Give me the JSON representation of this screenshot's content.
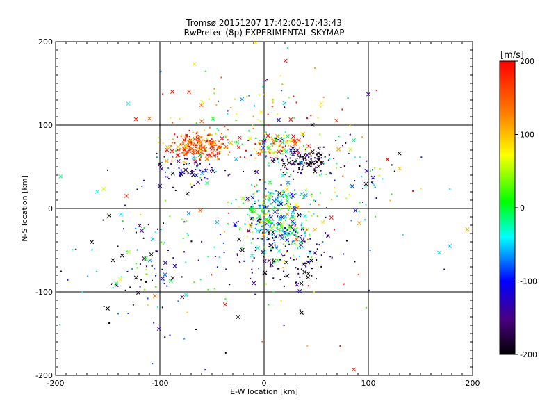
{
  "chart_data": {
    "type": "scatter",
    "title": "Tromsø 20151207 17:42:00-17:43:43",
    "subtitle": "RwPretec (8p) EXPERIMENTAL SKYMAP",
    "xlabel": "E-W location [km]",
    "ylabel": "N-S location [km]",
    "xlim": [
      -200,
      200
    ],
    "ylim": [
      -200,
      200
    ],
    "xticks": [
      "-200",
      "-100",
      "0",
      "100",
      "200"
    ],
    "yticks": [
      "-200",
      "-100",
      "0",
      "100",
      "200"
    ],
    "grid_lines": [
      -100,
      0,
      100
    ],
    "marker_types": [
      "dot",
      "x"
    ],
    "colorbar": {
      "label": "[m/s]",
      "range": [
        -200,
        200
      ],
      "ticks": [
        "200",
        "100",
        "0",
        "-100",
        "-200"
      ],
      "colormap": "rainbow (black-purple-blue-cyan-green-yellow-orange-red)"
    },
    "clusters": [
      {
        "center": [
          -62,
          76
        ],
        "spread": [
          16,
          9
        ],
        "count": 240,
        "velocity_mean": 150,
        "velocity_sd": 60
      },
      {
        "center": [
          -70,
          45
        ],
        "spread": [
          18,
          10
        ],
        "count": 70,
        "velocity_mean": -120,
        "velocity_sd": 50
      },
      {
        "center": [
          10,
          76
        ],
        "spread": [
          14,
          8
        ],
        "count": 130,
        "velocity_mean": 60,
        "velocity_sd": 90
      },
      {
        "center": [
          40,
          58
        ],
        "spread": [
          12,
          7
        ],
        "count": 120,
        "velocity_mean": -185,
        "velocity_sd": 25
      },
      {
        "center": [
          15,
          -12
        ],
        "spread": [
          18,
          22
        ],
        "count": 380,
        "velocity_mean": -20,
        "velocity_sd": 80
      },
      {
        "center": [
          20,
          -62
        ],
        "spread": [
          28,
          20
        ],
        "count": 110,
        "velocity_mean": -170,
        "velocity_sd": 40
      },
      {
        "center": [
          80,
          40
        ],
        "spread": [
          25,
          25
        ],
        "count": 70,
        "velocity_mean": -60,
        "velocity_sd": 120
      },
      {
        "center": [
          -110,
          -70
        ],
        "spread": [
          32,
          40
        ],
        "count": 120,
        "velocity_mean": -100,
        "velocity_sd": 110
      },
      {
        "center": [
          -10,
          120
        ],
        "spread": [
          40,
          25
        ],
        "count": 60,
        "velocity_mean": 80,
        "velocity_sd": 120
      },
      {
        "center": [
          0,
          10
        ],
        "spread": [
          90,
          80
        ],
        "count": 130,
        "velocity_mean": 0,
        "velocity_sd": 130
      }
    ],
    "notable_points": [
      {
        "x": 86,
        "y": -193,
        "v": 190,
        "marker": "x"
      },
      {
        "x": 73,
        "y": -165,
        "v": 190,
        "marker": "dot"
      },
      {
        "x": -160,
        "y": 20,
        "v": -40,
        "marker": "x"
      },
      {
        "x": 195,
        "y": -25,
        "v": 110,
        "marker": "x"
      },
      {
        "x": 178,
        "y": -45,
        "v": -60,
        "marker": "x"
      },
      {
        "x": 168,
        "y": -53,
        "v": -50,
        "marker": "x"
      },
      {
        "x": 100,
        "y": 137,
        "v": -130,
        "marker": "x"
      },
      {
        "x": -132,
        "y": 15,
        "v": 180,
        "marker": "x"
      },
      {
        "x": -123,
        "y": 107,
        "v": 190,
        "marker": "x"
      },
      {
        "x": -110,
        "y": 108,
        "v": 150,
        "marker": "x"
      },
      {
        "x": -150,
        "y": -120,
        "v": -200,
        "marker": "x"
      },
      {
        "x": -25,
        "y": -130,
        "v": -200,
        "marker": "x"
      },
      {
        "x": -88,
        "y": 140,
        "v": 190,
        "marker": "x"
      },
      {
        "x": -72,
        "y": 140,
        "v": 180,
        "marker": "x"
      },
      {
        "x": 130,
        "y": 48,
        "v": 100,
        "marker": "x"
      },
      {
        "x": 36,
        "y": -125,
        "v": -200,
        "marker": "x"
      },
      {
        "x": -150,
        "y": 46,
        "v": -200,
        "marker": "dot"
      },
      {
        "x": -145,
        "y": -62,
        "v": -200,
        "marker": "x"
      },
      {
        "x": -130,
        "y": -52,
        "v": 50,
        "marker": "x"
      }
    ]
  }
}
